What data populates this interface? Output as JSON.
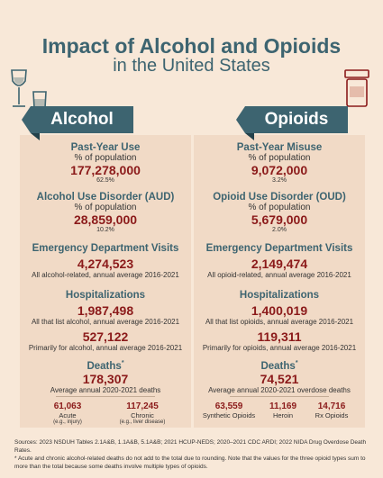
{
  "title": {
    "line1": "Impact of Alcohol and Opioids",
    "line2": "in the United States"
  },
  "alcohol": {
    "banner": "Alcohol",
    "past_year_use": {
      "heading": "Past-Year Use",
      "sub": "% of population",
      "value": "177,278,000",
      "pct": "62.5%"
    },
    "aud": {
      "heading": "Alcohol Use Disorder (AUD)",
      "sub": "% of population",
      "value": "28,859,000",
      "pct": "10.2%"
    },
    "ed": {
      "heading": "Emergency Department Visits",
      "value": "4,274,523",
      "note": "All alcohol-related, annual average 2016-2021"
    },
    "hosp": {
      "heading": "Hospitalizations",
      "value1": "1,987,498",
      "note1": "All that list alcohol, annual average 2016-2021",
      "value2": "527,122",
      "note2": "Primarily for alcohol, annual average 2016-2021"
    },
    "deaths": {
      "heading": "Deaths",
      "asterisk": "*",
      "value": "178,307",
      "note": "Average annual 2020-2021 deaths",
      "breakdown": [
        {
          "value": "61,063",
          "label": "Acute",
          "sub": "(e.g., injury)"
        },
        {
          "value": "117,245",
          "label": "Chronic",
          "sub": "(e.g., liver disease)"
        }
      ]
    }
  },
  "opioids": {
    "banner": "Opioids",
    "past_year_misuse": {
      "heading": "Past-Year Misuse",
      "sub": "% of population",
      "value": "9,072,000",
      "pct": "3.2%"
    },
    "oud": {
      "heading": "Opioid Use Disorder (OUD)",
      "sub": "% of population",
      "value": "5,679,000",
      "pct": "2.0%"
    },
    "ed": {
      "heading": "Emergency Department Visits",
      "value": "2,149,474",
      "note": "All opioid-related, annual average 2016-2021"
    },
    "hosp": {
      "heading": "Hospitalizations",
      "value1": "1,400,019",
      "note1": "All that list opioids, annual average 2016-2021",
      "value2": "119,311",
      "note2": "Primarily for opioids, annual average 2016-2021"
    },
    "deaths": {
      "heading": "Deaths",
      "asterisk": "*",
      "value": "74,521",
      "note": "Average annual 2020-2021 overdose deaths",
      "breakdown": [
        {
          "value": "63,559",
          "label": "Synthetic Opioids"
        },
        {
          "value": "11,169",
          "label": "Heroin"
        },
        {
          "value": "14,716",
          "label": "Rx Opioids"
        }
      ]
    }
  },
  "footer": {
    "sources": "Sources: 2023 NSDUH Tables 2.1A&B, 1.1A&B, 5.1A&B; 2021 HCUP-NEDS; 2020–2021 CDC ARDI; 2022 NIDA Drug Overdose Death Rates.",
    "note": "* Acute and chronic alcohol-related deaths do not add to the total due to rounding. Note that the values for the three opioid types sum to more than the total because some deaths involve multiple types of opioids."
  },
  "colors": {
    "teal": "#3d6470",
    "red": "#8b1a1a",
    "background": "#f8e8d8",
    "panel": "#f1dac6"
  },
  "icons": [
    "wine-glass-icon",
    "rocks-glass-icon",
    "pill-bottle-icon"
  ]
}
